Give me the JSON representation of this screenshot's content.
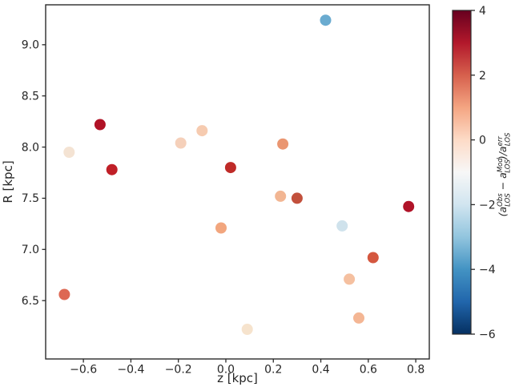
{
  "figure": {
    "background": "#ffffff",
    "axis_color": "#2a2a2a",
    "text_color": "#262626"
  },
  "chart_data": {
    "type": "scatter",
    "title": "",
    "xlabel": "z [kpc]",
    "ylabel": "R [kpc]",
    "xlim": [
      -0.759,
      0.857
    ],
    "ylim": [
      5.93,
      9.39
    ],
    "grid": false,
    "legend": false,
    "x_ticks": [
      -0.6,
      -0.4,
      -0.2,
      0.0,
      0.2,
      0.4,
      0.6,
      0.8
    ],
    "x_tick_labels": [
      "−0.6",
      "−0.4",
      "−0.2",
      "0.0",
      "0.2",
      "0.4",
      "0.6",
      "0.8"
    ],
    "y_ticks": [
      9.0,
      8.5,
      8.0,
      7.5,
      7.0,
      6.5
    ],
    "y_tick_labels": [
      "9.0",
      "8.5",
      "8.0",
      "7.5",
      "7.0",
      "6.5"
    ],
    "marker_radius_px": 7,
    "points": [
      {
        "z": -0.68,
        "R": 6.56,
        "c": 1.8,
        "color": "#dd6853"
      },
      {
        "z": -0.66,
        "R": 7.95,
        "c": 0.3,
        "color": "#f4e3d3"
      },
      {
        "z": -0.53,
        "R": 8.22,
        "c": 3.1,
        "color": "#b01226"
      },
      {
        "z": -0.48,
        "R": 7.78,
        "c": 2.8,
        "color": "#c01f27"
      },
      {
        "z": -0.19,
        "R": 8.04,
        "c": 0.5,
        "color": "#f5d0ba"
      },
      {
        "z": -0.1,
        "R": 8.16,
        "c": 0.6,
        "color": "#f6cbb0"
      },
      {
        "z": -0.02,
        "R": 7.21,
        "c": 1.1,
        "color": "#f2a67e"
      },
      {
        "z": 0.02,
        "R": 7.8,
        "c": 2.7,
        "color": "#bf2b28"
      },
      {
        "z": 0.09,
        "R": 6.22,
        "c": 0.3,
        "color": "#f6e3cd"
      },
      {
        "z": 0.23,
        "R": 7.52,
        "c": 0.9,
        "color": "#f2b693"
      },
      {
        "z": 0.24,
        "R": 8.03,
        "c": 1.3,
        "color": "#ea9671"
      },
      {
        "z": 0.3,
        "R": 7.5,
        "c": 2.3,
        "color": "#c2503c"
      },
      {
        "z": 0.42,
        "R": 9.24,
        "c": -3.3,
        "color": "#6aabd0"
      },
      {
        "z": 0.49,
        "R": 7.23,
        "c": -1.6,
        "color": "#cfe2ec"
      },
      {
        "z": 0.52,
        "R": 6.71,
        "c": 0.7,
        "color": "#f5c0a0"
      },
      {
        "z": 0.56,
        "R": 6.33,
        "c": 0.8,
        "color": "#f4b694"
      },
      {
        "z": 0.62,
        "R": 6.92,
        "c": 2.0,
        "color": "#d4573f"
      },
      {
        "z": 0.77,
        "R": 7.42,
        "c": 3.1,
        "color": "#b01328"
      }
    ],
    "colorbar": {
      "cmap": "RdBu_r",
      "vmin": -6,
      "vmax": 4,
      "ticks": [
        4,
        2,
        0,
        -2,
        -4,
        -6
      ],
      "tick_labels": [
        "4",
        "2",
        "0",
        "−2",
        "−4",
        "−6"
      ],
      "gradient_top_to_bottom": [
        "#67001f",
        "#b2182b",
        "#d6604d",
        "#f4a582",
        "#fddbc7",
        "#f7f7f7",
        "#d1e5f0",
        "#92c5de",
        "#4393c3",
        "#2166ac",
        "#053061"
      ],
      "label_parts": {
        "open": "(a",
        "sup1": "Obs",
        "sub1": "LOS",
        "mid": " − a",
        "sup2": "Mod",
        "sub2": "LOS",
        "close": ")/a",
        "sup3": "err",
        "sub3": "LOS"
      }
    }
  }
}
